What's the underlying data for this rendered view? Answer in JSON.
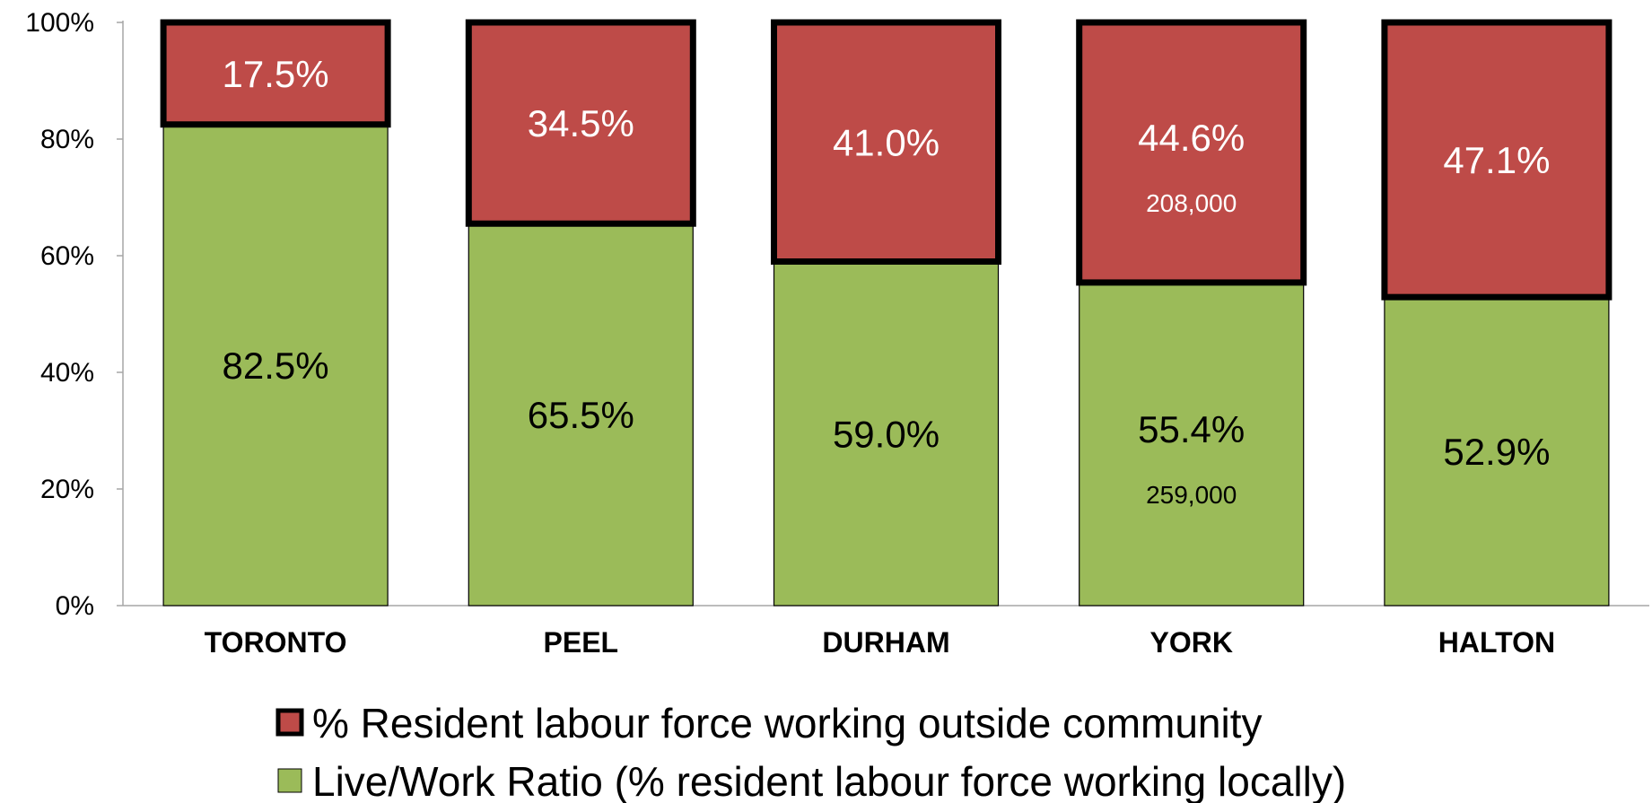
{
  "chart_data": {
    "type": "bar",
    "stacked": true,
    "categories": [
      "TORONTO",
      "PEEL",
      "DURHAM",
      "YORK",
      "HALTON"
    ],
    "series": [
      {
        "name": "Live/Work Ratio (% resident labour force working locally)",
        "values": [
          82.5,
          65.5,
          59.0,
          55.4,
          52.9
        ],
        "labels": [
          "82.5%",
          "65.5%",
          "59.0%",
          "55.4%",
          "52.9%"
        ],
        "color": "#9BBB59",
        "label_color": "#000000"
      },
      {
        "name": "% Resident labour force working outside community",
        "values": [
          17.5,
          34.5,
          41.0,
          44.6,
          47.1
        ],
        "labels": [
          "17.5%",
          "34.5%",
          "41.0%",
          "44.6%",
          "47.1%"
        ],
        "color": "#BE4B48",
        "label_color": "#ffffff"
      }
    ],
    "annotations": [
      {
        "category": "YORK",
        "series": 0,
        "text": "259,000"
      },
      {
        "category": "YORK",
        "series": 1,
        "text": "208,000"
      }
    ],
    "ylim": [
      0,
      100
    ],
    "yticks": [
      0,
      20,
      40,
      60,
      80,
      100
    ],
    "ytick_labels": [
      "0%",
      "20%",
      "40%",
      "60%",
      "80%",
      "100%"
    ],
    "legend_order": [
      1,
      0
    ],
    "legend_position": "bottom",
    "grid": false,
    "title": "",
    "xlabel": "",
    "ylabel": ""
  }
}
